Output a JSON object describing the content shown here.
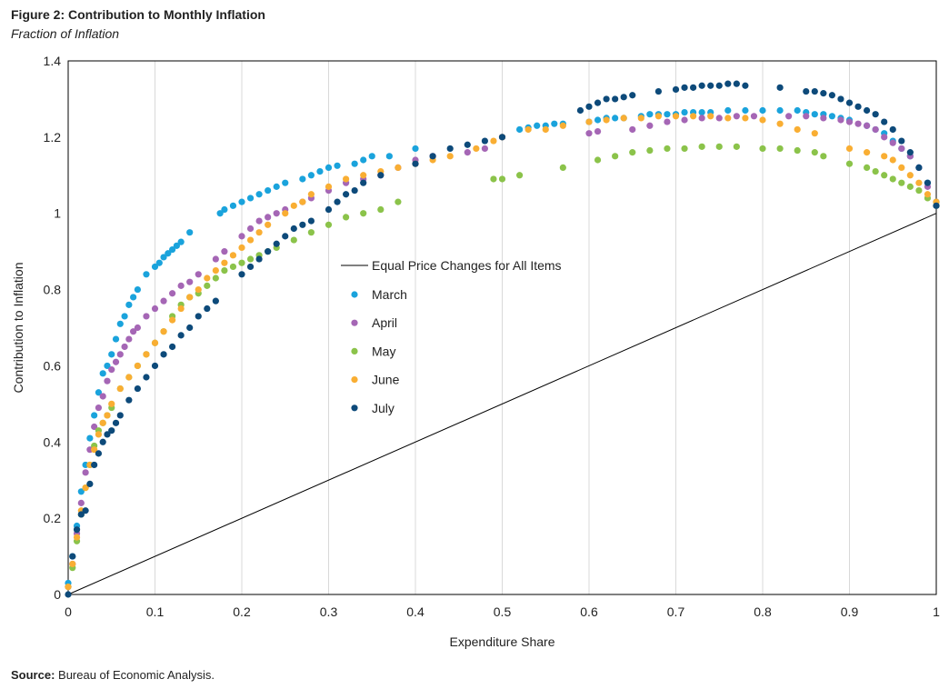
{
  "figure": {
    "title": "Figure 2: Contribution to Monthly Inflation",
    "subtitle": "Fraction of Inflation",
    "source_label": "Source:",
    "source_text": " Bureau of Economic Analysis."
  },
  "chart_data": {
    "type": "scatter",
    "xlabel": "Expenditure Share",
    "ylabel": "Contribution  to Inflation",
    "xlim": [
      0,
      1
    ],
    "ylim": [
      0,
      1.4
    ],
    "xticks": [
      "0",
      "0.1",
      "0.2",
      "0.3",
      "0.4",
      "0.5",
      "0.6",
      "0.7",
      "0.8",
      "0.9",
      "1"
    ],
    "yticks": [
      "0",
      "0.2",
      "0.4",
      "0.6",
      "0.8",
      "1",
      "1.2",
      "1.4"
    ],
    "grid": "vertical",
    "legend_position": "center",
    "reference_line": {
      "name": "Equal Price Changes for All Items",
      "x": [
        0,
        1
      ],
      "y": [
        0,
        1
      ],
      "color": "#000000"
    },
    "series": [
      {
        "name": "March",
        "color": "#1AA3DC",
        "x": [
          0.0,
          0.005,
          0.01,
          0.015,
          0.02,
          0.025,
          0.03,
          0.035,
          0.04,
          0.045,
          0.05,
          0.055,
          0.06,
          0.065,
          0.07,
          0.075,
          0.08,
          0.09,
          0.1,
          0.105,
          0.11,
          0.115,
          0.12,
          0.125,
          0.13,
          0.14,
          0.175,
          0.18,
          0.19,
          0.2,
          0.21,
          0.22,
          0.23,
          0.24,
          0.25,
          0.27,
          0.28,
          0.29,
          0.3,
          0.31,
          0.33,
          0.34,
          0.35,
          0.37,
          0.4,
          0.52,
          0.53,
          0.54,
          0.55,
          0.56,
          0.57,
          0.6,
          0.61,
          0.62,
          0.63,
          0.64,
          0.66,
          0.67,
          0.68,
          0.69,
          0.7,
          0.71,
          0.72,
          0.73,
          0.74,
          0.76,
          0.78,
          0.8,
          0.82,
          0.84,
          0.85,
          0.86,
          0.87,
          0.88,
          0.89,
          0.9,
          0.92,
          0.93,
          0.94,
          0.95,
          0.96,
          0.97,
          0.98,
          0.99,
          1.0
        ],
        "y": [
          0.03,
          0.1,
          0.18,
          0.27,
          0.34,
          0.41,
          0.47,
          0.53,
          0.58,
          0.6,
          0.63,
          0.67,
          0.71,
          0.73,
          0.76,
          0.78,
          0.8,
          0.84,
          0.86,
          0.87,
          0.885,
          0.895,
          0.905,
          0.915,
          0.925,
          0.95,
          1.0,
          1.01,
          1.02,
          1.03,
          1.04,
          1.05,
          1.06,
          1.07,
          1.08,
          1.09,
          1.1,
          1.11,
          1.12,
          1.125,
          1.13,
          1.14,
          1.15,
          1.15,
          1.17,
          1.22,
          1.225,
          1.23,
          1.23,
          1.235,
          1.235,
          1.24,
          1.245,
          1.25,
          1.25,
          1.25,
          1.255,
          1.26,
          1.26,
          1.26,
          1.26,
          1.265,
          1.265,
          1.265,
          1.265,
          1.27,
          1.27,
          1.27,
          1.27,
          1.27,
          1.265,
          1.26,
          1.26,
          1.255,
          1.25,
          1.245,
          1.23,
          1.22,
          1.21,
          1.19,
          1.17,
          1.15,
          1.12,
          1.08,
          1.03
        ]
      },
      {
        "name": "April",
        "color": "#A566B5",
        "x": [
          0.0,
          0.005,
          0.01,
          0.015,
          0.02,
          0.025,
          0.03,
          0.035,
          0.04,
          0.045,
          0.05,
          0.055,
          0.06,
          0.065,
          0.07,
          0.075,
          0.08,
          0.09,
          0.1,
          0.11,
          0.12,
          0.13,
          0.14,
          0.15,
          0.17,
          0.18,
          0.2,
          0.21,
          0.22,
          0.23,
          0.24,
          0.25,
          0.27,
          0.28,
          0.3,
          0.32,
          0.34,
          0.36,
          0.38,
          0.4,
          0.42,
          0.46,
          0.48,
          0.5,
          0.6,
          0.61,
          0.65,
          0.67,
          0.69,
          0.71,
          0.73,
          0.75,
          0.77,
          0.79,
          0.83,
          0.85,
          0.87,
          0.89,
          0.9,
          0.91,
          0.92,
          0.93,
          0.94,
          0.95,
          0.96,
          0.97,
          0.98,
          0.99,
          1.0
        ],
        "y": [
          0.02,
          0.08,
          0.16,
          0.24,
          0.32,
          0.38,
          0.44,
          0.49,
          0.52,
          0.56,
          0.59,
          0.61,
          0.63,
          0.65,
          0.67,
          0.69,
          0.7,
          0.73,
          0.75,
          0.77,
          0.79,
          0.81,
          0.82,
          0.84,
          0.88,
          0.9,
          0.94,
          0.96,
          0.98,
          0.99,
          1.0,
          1.01,
          1.03,
          1.04,
          1.06,
          1.08,
          1.09,
          1.1,
          1.12,
          1.14,
          1.15,
          1.16,
          1.17,
          1.2,
          1.21,
          1.215,
          1.22,
          1.23,
          1.24,
          1.245,
          1.25,
          1.25,
          1.255,
          1.255,
          1.255,
          1.255,
          1.25,
          1.245,
          1.24,
          1.235,
          1.23,
          1.22,
          1.2,
          1.185,
          1.17,
          1.15,
          1.12,
          1.07,
          1.02
        ]
      },
      {
        "name": "May",
        "color": "#8BC34A",
        "x": [
          0.0,
          0.005,
          0.01,
          0.015,
          0.02,
          0.025,
          0.03,
          0.035,
          0.04,
          0.045,
          0.05,
          0.06,
          0.07,
          0.08,
          0.09,
          0.1,
          0.11,
          0.12,
          0.13,
          0.14,
          0.15,
          0.16,
          0.17,
          0.18,
          0.19,
          0.2,
          0.21,
          0.22,
          0.23,
          0.24,
          0.26,
          0.28,
          0.3,
          0.32,
          0.34,
          0.36,
          0.38,
          0.49,
          0.5,
          0.52,
          0.57,
          0.61,
          0.63,
          0.65,
          0.67,
          0.69,
          0.71,
          0.73,
          0.75,
          0.77,
          0.8,
          0.82,
          0.84,
          0.86,
          0.87,
          0.9,
          0.92,
          0.93,
          0.94,
          0.95,
          0.96,
          0.97,
          0.98,
          0.99,
          1.0
        ],
        "y": [
          0.02,
          0.07,
          0.14,
          0.21,
          0.28,
          0.34,
          0.39,
          0.43,
          0.45,
          0.47,
          0.49,
          0.54,
          0.57,
          0.6,
          0.63,
          0.66,
          0.69,
          0.73,
          0.76,
          0.78,
          0.79,
          0.81,
          0.83,
          0.85,
          0.86,
          0.87,
          0.88,
          0.89,
          0.9,
          0.91,
          0.93,
          0.95,
          0.97,
          0.99,
          1.0,
          1.01,
          1.03,
          1.09,
          1.09,
          1.1,
          1.12,
          1.14,
          1.15,
          1.16,
          1.165,
          1.17,
          1.17,
          1.175,
          1.175,
          1.175,
          1.17,
          1.17,
          1.165,
          1.16,
          1.15,
          1.13,
          1.12,
          1.11,
          1.1,
          1.09,
          1.08,
          1.07,
          1.06,
          1.04,
          1.02
        ]
      },
      {
        "name": "June",
        "color": "#F9AE33",
        "x": [
          0.0,
          0.005,
          0.01,
          0.015,
          0.02,
          0.025,
          0.03,
          0.035,
          0.04,
          0.045,
          0.05,
          0.06,
          0.07,
          0.08,
          0.09,
          0.1,
          0.11,
          0.12,
          0.13,
          0.14,
          0.15,
          0.16,
          0.17,
          0.18,
          0.19,
          0.2,
          0.21,
          0.22,
          0.23,
          0.25,
          0.26,
          0.27,
          0.28,
          0.3,
          0.32,
          0.34,
          0.36,
          0.38,
          0.4,
          0.42,
          0.44,
          0.47,
          0.49,
          0.5,
          0.53,
          0.55,
          0.57,
          0.6,
          0.62,
          0.64,
          0.66,
          0.68,
          0.7,
          0.72,
          0.74,
          0.76,
          0.78,
          0.8,
          0.82,
          0.84,
          0.86,
          0.9,
          0.92,
          0.94,
          0.95,
          0.96,
          0.97,
          0.98,
          0.99,
          1.0
        ],
        "y": [
          0.02,
          0.08,
          0.15,
          0.22,
          0.28,
          0.34,
          0.38,
          0.42,
          0.45,
          0.47,
          0.5,
          0.54,
          0.57,
          0.6,
          0.63,
          0.66,
          0.69,
          0.72,
          0.75,
          0.78,
          0.8,
          0.83,
          0.85,
          0.87,
          0.89,
          0.91,
          0.93,
          0.95,
          0.97,
          1.0,
          1.02,
          1.03,
          1.05,
          1.07,
          1.09,
          1.1,
          1.11,
          1.12,
          1.13,
          1.14,
          1.15,
          1.17,
          1.19,
          1.2,
          1.22,
          1.22,
          1.23,
          1.24,
          1.245,
          1.25,
          1.25,
          1.255,
          1.255,
          1.255,
          1.255,
          1.25,
          1.25,
          1.245,
          1.235,
          1.22,
          1.21,
          1.17,
          1.16,
          1.15,
          1.14,
          1.12,
          1.1,
          1.08,
          1.05,
          1.03
        ]
      },
      {
        "name": "July",
        "color": "#0D4A7A",
        "x": [
          0.0,
          0.005,
          0.01,
          0.015,
          0.02,
          0.025,
          0.03,
          0.035,
          0.04,
          0.045,
          0.05,
          0.055,
          0.06,
          0.07,
          0.08,
          0.09,
          0.1,
          0.11,
          0.12,
          0.13,
          0.14,
          0.15,
          0.16,
          0.17,
          0.2,
          0.21,
          0.22,
          0.23,
          0.24,
          0.25,
          0.26,
          0.27,
          0.28,
          0.3,
          0.31,
          0.32,
          0.33,
          0.34,
          0.36,
          0.4,
          0.42,
          0.44,
          0.46,
          0.48,
          0.5,
          0.59,
          0.6,
          0.61,
          0.62,
          0.63,
          0.64,
          0.65,
          0.68,
          0.7,
          0.71,
          0.72,
          0.73,
          0.74,
          0.75,
          0.76,
          0.77,
          0.78,
          0.82,
          0.85,
          0.86,
          0.87,
          0.88,
          0.89,
          0.9,
          0.91,
          0.92,
          0.93,
          0.94,
          0.95,
          0.96,
          0.97,
          0.98,
          0.99,
          1.0
        ],
        "y": [
          0.0,
          0.1,
          0.17,
          0.21,
          0.22,
          0.29,
          0.34,
          0.37,
          0.4,
          0.42,
          0.43,
          0.45,
          0.47,
          0.51,
          0.54,
          0.57,
          0.6,
          0.63,
          0.65,
          0.68,
          0.7,
          0.73,
          0.75,
          0.77,
          0.84,
          0.86,
          0.88,
          0.9,
          0.92,
          0.94,
          0.96,
          0.97,
          0.98,
          1.01,
          1.03,
          1.05,
          1.06,
          1.08,
          1.1,
          1.13,
          1.15,
          1.17,
          1.18,
          1.19,
          1.2,
          1.27,
          1.28,
          1.29,
          1.3,
          1.3,
          1.305,
          1.31,
          1.32,
          1.325,
          1.33,
          1.33,
          1.335,
          1.335,
          1.335,
          1.34,
          1.34,
          1.335,
          1.33,
          1.32,
          1.32,
          1.315,
          1.31,
          1.3,
          1.29,
          1.28,
          1.27,
          1.26,
          1.24,
          1.22,
          1.19,
          1.16,
          1.12,
          1.08,
          1.02
        ]
      }
    ]
  }
}
